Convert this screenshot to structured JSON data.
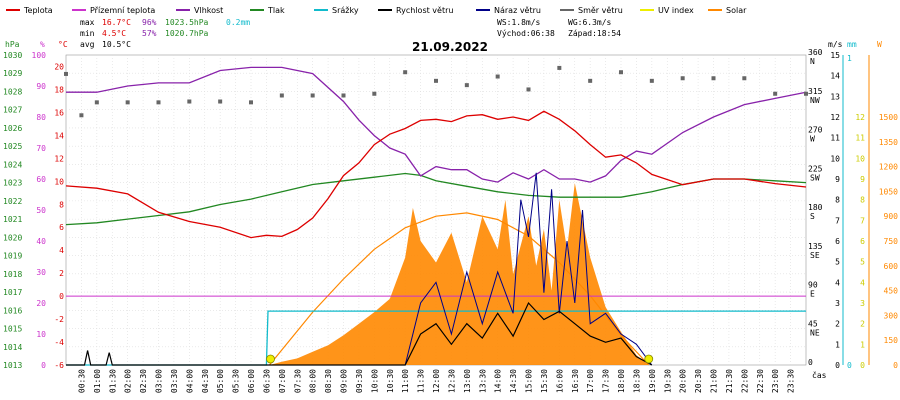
{
  "chart_data": {
    "type": "line",
    "title": "21.09.2022",
    "x_unit": "čas",
    "x_ticks": [
      "00:30",
      "01:00",
      "01:30",
      "02:00",
      "02:30",
      "03:00",
      "03:30",
      "04:00",
      "04:30",
      "05:00",
      "05:30",
      "06:00",
      "06:30",
      "07:00",
      "07:30",
      "08:00",
      "08:30",
      "09:00",
      "09:30",
      "10:00",
      "10:30",
      "11:00",
      "11:30",
      "12:00",
      "12:30",
      "13:00",
      "13:30",
      "14:00",
      "14:30",
      "15:00",
      "15:30",
      "16:00",
      "16:30",
      "17:00",
      "17:30",
      "18:00",
      "18:30",
      "19:00",
      "19:30",
      "20:00",
      "20:30",
      "21:00",
      "21:30",
      "22:00",
      "22:30",
      "23:00",
      "23:30"
    ],
    "legend": [
      {
        "name": "Teplota",
        "color": "#dd0000"
      },
      {
        "name": "Přízemní teplota",
        "color": "#cc33cc"
      },
      {
        "name": "Vlhkost",
        "color": "#8822aa"
      },
      {
        "name": "Tlak",
        "color": "#228822"
      },
      {
        "name": "Srážky",
        "color": "#11bbcc"
      },
      {
        "name": "Rychlost větru",
        "color": "#000000"
      },
      {
        "name": "Náraz větru",
        "color": "#000088"
      },
      {
        "name": "Směr větru",
        "color": "#666666"
      },
      {
        "name": "UV index",
        "color": "#eeee00"
      },
      {
        "name": "Solar",
        "color": "#ff8800"
      }
    ],
    "stats": {
      "max_label": "max",
      "max_temp": "16.7°C",
      "max_hum": "96%",
      "max_press": "1023.5hPa",
      "rain": "0.2mm",
      "min_label": "min",
      "min_temp": "4.5°C",
      "min_hum": "57%",
      "min_press": "1020.7hPa",
      "avg_label": "avg",
      "avg_temp": "10.5°C"
    },
    "wind_info": {
      "ws": "WS:1.8m/s",
      "wg": "WG:6.3m/s",
      "sunrise": "Východ:06:38",
      "sunset": "Západ:18:54"
    },
    "axes": {
      "hpa": {
        "label": "hPa",
        "ticks": [
          1030,
          1029,
          1028,
          1027,
          1026,
          1025,
          1024,
          1023,
          1022,
          1021,
          1020,
          1019,
          1018,
          1017,
          1016,
          1015,
          1014,
          1013
        ],
        "range": [
          1013,
          1030
        ]
      },
      "pct": {
        "label": "%",
        "ticks": [
          100,
          90,
          80,
          70,
          60,
          50,
          40,
          30,
          20,
          10,
          0
        ],
        "range": [
          0,
          100
        ]
      },
      "degc": {
        "label": "°C",
        "ticks": [
          20,
          18,
          16,
          14,
          12,
          10,
          8,
          6,
          4,
          2,
          0,
          -2,
          -4,
          -6
        ],
        "range": [
          -6,
          21
        ]
      },
      "ms": {
        "label": "m/s",
        "ticks": [
          15,
          14,
          13,
          12,
          11,
          10,
          9,
          8,
          7,
          6,
          5,
          4,
          3,
          2,
          1,
          0
        ],
        "range": [
          0,
          15
        ]
      },
      "dir": {
        "ticks": [
          "360",
          "N",
          "315",
          "NW",
          "270",
          "W",
          "225",
          "SW",
          "180",
          "S",
          "135",
          "SE",
          "90",
          "E",
          "45",
          "NE",
          "0"
        ]
      },
      "mm": {
        "label": "mm",
        "ticks": [
          1,
          0
        ]
      },
      "uv": {
        "ticks": [
          12,
          11,
          10,
          9,
          8,
          7,
          6,
          5,
          4,
          3,
          2,
          1,
          0
        ]
      },
      "wm2": {
        "label": "W",
        "ticks": [
          1500,
          1350,
          1200,
          1050,
          900,
          750,
          600,
          450,
          300,
          150,
          0
        ]
      }
    },
    "series": {
      "temp_x": [
        0,
        1,
        2,
        3,
        4,
        5,
        6,
        6.5,
        7,
        7.5,
        8,
        8.5,
        9,
        9.5,
        10,
        10.5,
        11,
        11.5,
        12,
        12.5,
        13,
        13.5,
        14,
        14.5,
        15,
        15.5,
        16,
        16.5,
        17,
        17.5,
        18,
        18.5,
        19,
        20,
        21,
        22,
        23,
        24
      ],
      "temp": [
        9.6,
        9.4,
        8.9,
        7.3,
        6.5,
        6.0,
        5.1,
        5.3,
        5.2,
        5.8,
        6.8,
        8.5,
        10.5,
        11.6,
        13.2,
        14.1,
        14.6,
        15.3,
        15.4,
        15.2,
        15.7,
        15.8,
        15.4,
        15.6,
        15.3,
        16.1,
        15.4,
        14.4,
        13.2,
        12.1,
        12.3,
        11.6,
        10.6,
        9.7,
        10.2,
        10.2,
        9.8,
        9.5
      ],
      "hum_x": [
        0,
        1,
        2,
        3,
        4,
        5,
        6,
        7,
        8,
        9,
        9.5,
        10,
        10.5,
        11,
        11.5,
        12,
        12.5,
        13,
        13.5,
        14,
        14.5,
        15,
        15.5,
        16,
        16.5,
        17,
        17.5,
        18,
        18.5,
        19,
        20,
        21,
        22,
        23,
        24
      ],
      "hum": [
        88,
        88,
        90,
        91,
        91,
        95,
        96,
        96,
        94,
        85,
        79,
        74,
        70,
        68,
        61,
        64,
        63,
        63,
        60,
        59,
        62,
        60,
        63,
        60,
        60,
        59,
        61,
        66,
        69,
        68,
        75,
        80,
        84,
        86,
        88
      ],
      "press_x": [
        0,
        1,
        2,
        3,
        4,
        5,
        6,
        7,
        8,
        9,
        10,
        11,
        11.5,
        12,
        13,
        14,
        15,
        16,
        17,
        18,
        19,
        20,
        21,
        22,
        23,
        24
      ],
      "press": [
        1020.7,
        1020.8,
        1021.0,
        1021.2,
        1021.4,
        1021.8,
        1022.1,
        1022.5,
        1022.9,
        1023.1,
        1023.3,
        1023.5,
        1023.4,
        1023.1,
        1022.8,
        1022.5,
        1022.3,
        1022.2,
        1022.2,
        1022.2,
        1022.5,
        1022.9,
        1023.2,
        1023.2,
        1023.1,
        1023.0
      ],
      "solar_x": [
        6.6,
        7,
        7.5,
        8,
        8.5,
        9,
        9.5,
        10,
        10.5,
        11,
        11.25,
        11.5,
        12,
        12.5,
        13,
        13.5,
        14,
        14.25,
        14.5,
        15,
        15.25,
        15.5,
        15.75,
        16,
        16.25,
        16.5,
        17,
        17.5,
        18,
        18.5,
        18.9
      ],
      "solar": [
        0,
        20,
        40,
        80,
        120,
        180,
        250,
        320,
        400,
        650,
        950,
        750,
        620,
        800,
        500,
        900,
        700,
        1000,
        550,
        900,
        600,
        820,
        450,
        1000,
        700,
        1100,
        650,
        350,
        200,
        60,
        0
      ],
      "clear_x": [
        6.6,
        8,
        9,
        10,
        11,
        12,
        13,
        14,
        15,
        16,
        17,
        18,
        18.9
      ],
      "clear": [
        0,
        320,
        520,
        700,
        830,
        900,
        920,
        880,
        780,
        620,
        420,
        180,
        0
      ],
      "wind_x": [
        0,
        0.6,
        0.7,
        0.8,
        1.3,
        1.4,
        1.5,
        2,
        11,
        11.5,
        12,
        12.5,
        13,
        13.5,
        14,
        14.5,
        15,
        15.5,
        16,
        16.5,
        17,
        17.5,
        18,
        18.5,
        19
      ],
      "wind": [
        0,
        0,
        0.7,
        0,
        0,
        0.6,
        0,
        0,
        0,
        1.5,
        2.0,
        1.0,
        2.0,
        1.3,
        2.5,
        1.4,
        3.0,
        2.2,
        2.6,
        2.0,
        1.4,
        1.1,
        1.3,
        0.4,
        0
      ],
      "gust_x": [
        11,
        11.5,
        12,
        12.5,
        13,
        13.5,
        14,
        14.5,
        14.75,
        15,
        15.25,
        15.5,
        15.75,
        16,
        16.25,
        16.5,
        16.75,
        17,
        17.5,
        18,
        18.5,
        19
      ],
      "gust": [
        0,
        3.0,
        4.0,
        1.5,
        4.5,
        2.0,
        4.5,
        2.5,
        8.0,
        6.2,
        9.3,
        3.5,
        8.5,
        2.5,
        6.0,
        3.0,
        7.5,
        2.0,
        2.5,
        1.5,
        1.0,
        0
      ],
      "dir_x": [
        0,
        0.5,
        1,
        2,
        3,
        4,
        5,
        6,
        7,
        8,
        9,
        10,
        11,
        12,
        13,
        14,
        15,
        16,
        17,
        18,
        19,
        20,
        21,
        22,
        23,
        24
      ],
      "dir": [
        338,
        290,
        305,
        305,
        305,
        306,
        306,
        305,
        313,
        313,
        313,
        315,
        340,
        330,
        325,
        335,
        320,
        345,
        330,
        340,
        330,
        333,
        333,
        333,
        315,
        315
      ],
      "rain_x": [
        0,
        6.5,
        6.55,
        24
      ],
      "rain": [
        0,
        0,
        0.2,
        0.2
      ]
    },
    "sun_markers": [
      "06:38",
      "18:54"
    ]
  }
}
